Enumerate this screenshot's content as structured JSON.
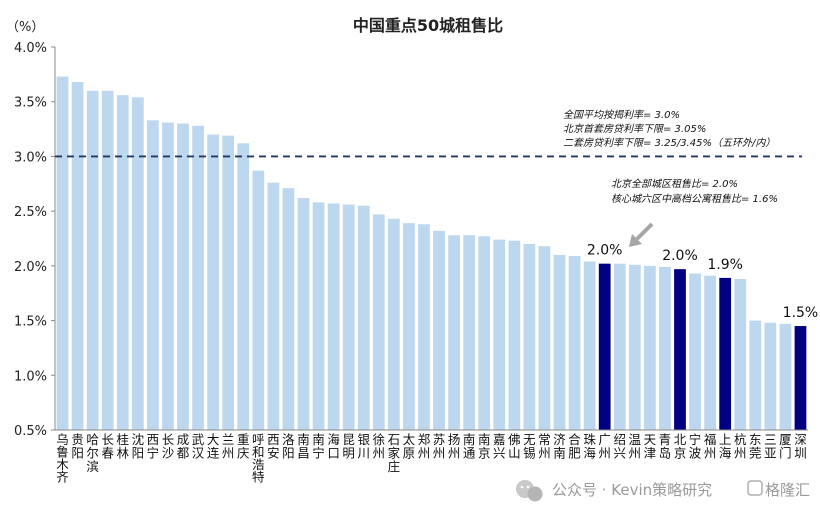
{
  "chart_data": {
    "type": "bar",
    "title": "中国重点50城租售比",
    "unit_label": "（%）",
    "ylim": [
      0.5,
      4.0
    ],
    "yticks": [
      "0.5%",
      "1.0%",
      "1.5%",
      "2.0%",
      "2.5%",
      "3.0%",
      "3.5%",
      "4.0%"
    ],
    "ytick_values": [
      0.5,
      1.0,
      1.5,
      2.0,
      2.5,
      3.0,
      3.5,
      4.0
    ],
    "categories": [
      "乌鲁木齐",
      "贵阳",
      "哈尔滨",
      "长春",
      "桂林",
      "沈阳",
      "西宁",
      "长沙",
      "成都",
      "武汉",
      "大连",
      "兰州",
      "重庆",
      "呼和浩特",
      "西安",
      "洛阳",
      "南昌",
      "南宁",
      "海口",
      "昆明",
      "银川",
      "徐州",
      "石家庄",
      "太原",
      "郑州",
      "苏州",
      "扬州",
      "南通",
      "南京",
      "嘉兴",
      "佛山",
      "无锡",
      "常州",
      "济南",
      "合肥",
      "珠海",
      "广州",
      "绍兴",
      "温州",
      "天津",
      "青岛",
      "北京",
      "宁波",
      "福州",
      "上海",
      "杭州",
      "东莞",
      "三亚",
      "厦门",
      "深圳"
    ],
    "values": [
      3.73,
      3.68,
      3.6,
      3.6,
      3.56,
      3.54,
      3.33,
      3.31,
      3.3,
      3.28,
      3.2,
      3.19,
      3.12,
      2.87,
      2.76,
      2.71,
      2.62,
      2.58,
      2.57,
      2.56,
      2.55,
      2.47,
      2.43,
      2.39,
      2.38,
      2.32,
      2.28,
      2.28,
      2.27,
      2.24,
      2.23,
      2.2,
      2.18,
      2.1,
      2.09,
      2.04,
      2.02,
      2.02,
      2.01,
      2.0,
      1.99,
      1.97,
      1.93,
      1.91,
      1.89,
      1.88,
      1.5,
      1.48,
      1.47,
      1.45
    ],
    "highlighted": [
      "广州",
      "北京",
      "上海",
      "深圳"
    ],
    "colors": {
      "normal": "#BDD7EE",
      "highlight": "#000080",
      "refline": "#1F3864",
      "arrow": "#A6A6A6"
    },
    "reference_line": {
      "value": 3.0,
      "style": "dashed"
    },
    "annotations": {
      "refline_lines": [
        "全国平均按揭利率= 3.0%",
        "北京首套房贷利率下限= 3.05%",
        "二套房贷利率下限= 3.25/3.45%（五环外/内）"
      ],
      "beijing_lines": [
        "北京全部城区租售比= 2.0%",
        "核心城六区中高档公寓租售比= 1.6%"
      ]
    },
    "data_labels": [
      {
        "category": "广州",
        "text": "2.0%"
      },
      {
        "category": "北京",
        "text": "2.0%"
      },
      {
        "category": "上海",
        "text": "1.9%"
      },
      {
        "category": "深圳",
        "text": "1.5%"
      }
    ],
    "grid": false,
    "legend": "none"
  },
  "watermark": {
    "icon": "wechat-icon",
    "text": "公众号 · Kevin策略研究",
    "logo_text": "格隆汇"
  }
}
